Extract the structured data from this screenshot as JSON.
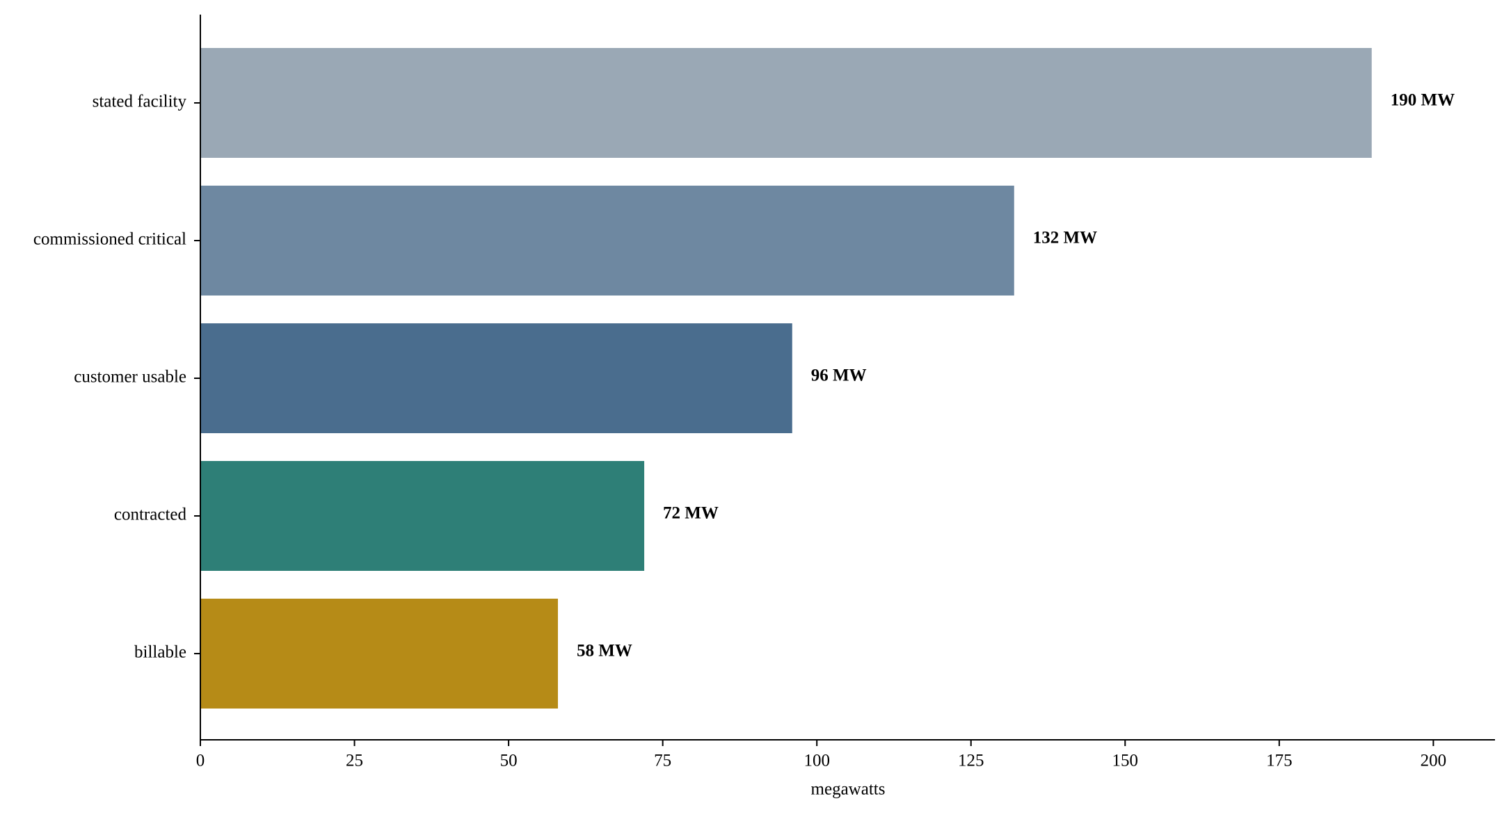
{
  "chart_data": {
    "type": "barh",
    "categories": [
      "stated facility",
      "commissioned critical",
      "customer usable",
      "contracted",
      "billable"
    ],
    "values": [
      190,
      132,
      96,
      72,
      58
    ],
    "value_labels": [
      "190 MW",
      "132 MW",
      "96 MW",
      "72 MW",
      "58 MW"
    ],
    "colors": [
      "#9aa8b5",
      "#6e88a1",
      "#4a6d8e",
      "#2e7f77",
      "#b68b17"
    ],
    "xlabel": "megawatts",
    "xlim": [
      0,
      210
    ],
    "xticks": [
      0,
      25,
      50,
      75,
      100,
      125,
      150,
      175,
      200
    ]
  }
}
